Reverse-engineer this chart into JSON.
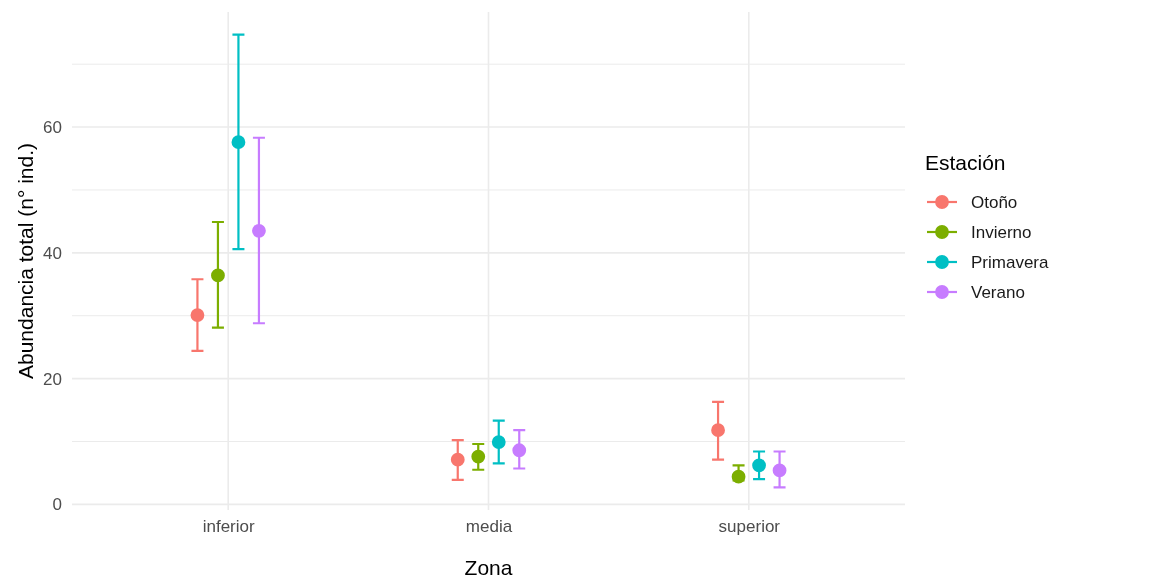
{
  "chart_data": {
    "type": "scatter",
    "xlabel": "Zona",
    "ylabel": "Abundancia total (n° ind.)",
    "legend_title": "Estación",
    "categories": [
      "inferior",
      "media",
      "superior"
    ],
    "series": [
      {
        "name": "Otoño",
        "color": "#f8766d",
        "values": [
          30.1,
          7.1,
          11.8
        ],
        "errors": [
          [
            24.4,
            35.8
          ],
          [
            3.9,
            10.2
          ],
          [
            7.1,
            16.3
          ]
        ]
      },
      {
        "name": "Invierno",
        "color": "#7cae00",
        "values": [
          36.4,
          7.6,
          4.4
        ],
        "errors": [
          [
            28.1,
            44.9
          ],
          [
            5.5,
            9.6
          ],
          [
            3.8,
            6.2
          ]
        ]
      },
      {
        "name": "Primavera",
        "color": "#00bfc4",
        "values": [
          57.6,
          9.9,
          6.2
        ],
        "errors": [
          [
            40.6,
            74.7
          ],
          [
            6.5,
            13.3
          ],
          [
            4.0,
            8.4
          ]
        ]
      },
      {
        "name": "Verano",
        "color": "#c77cff",
        "values": [
          43.5,
          8.6,
          5.4
        ],
        "errors": [
          [
            28.8,
            58.3
          ],
          [
            5.7,
            11.8
          ],
          [
            2.7,
            8.4
          ]
        ]
      }
    ],
    "ylim": [
      -0.9,
      78.3
    ],
    "yticks": [
      0,
      {
        "value": 10,
        "label": null
      },
      20,
      {
        "value": 30,
        "label": null
      },
      40,
      {
        "value": 50,
        "label": null
      },
      60,
      {
        "value": 70,
        "label": null
      }
    ],
    "grid": true,
    "legend": "right",
    "marker": "circle"
  }
}
